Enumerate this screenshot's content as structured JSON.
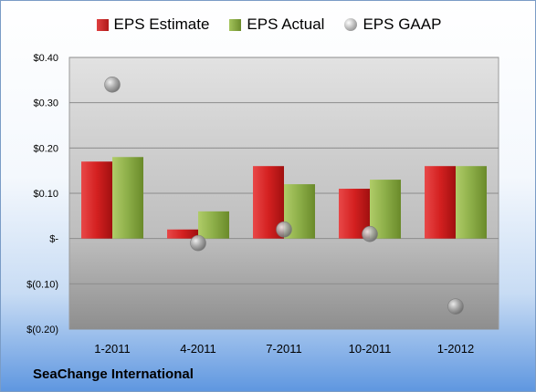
{
  "legend": {
    "estimate": "EPS Estimate",
    "actual": "EPS Actual",
    "gaap": "EPS GAAP"
  },
  "company": "SeaChange International",
  "colors": {
    "estimate": "#c62828",
    "actual": "#8cae48",
    "gaap": "#a0a0a0"
  },
  "chart_data": {
    "type": "bar",
    "categories": [
      "1-2011",
      "4-2011",
      "7-2011",
      "10-2011",
      "1-2012"
    ],
    "series": [
      {
        "name": "EPS Estimate",
        "values": [
          0.17,
          0.02,
          0.16,
          0.11,
          0.16
        ]
      },
      {
        "name": "EPS Actual",
        "values": [
          0.18,
          0.06,
          0.12,
          0.13,
          0.16
        ]
      },
      {
        "name": "EPS GAAP",
        "values": [
          0.34,
          -0.01,
          0.02,
          0.01,
          -0.15
        ],
        "marker": "circle"
      }
    ],
    "y_ticks": [
      {
        "value": 0.4,
        "label": "$0.40"
      },
      {
        "value": 0.3,
        "label": "$0.30"
      },
      {
        "value": 0.2,
        "label": "$0.20"
      },
      {
        "value": 0.1,
        "label": "$0.10"
      },
      {
        "value": 0.0,
        "label": "$-"
      },
      {
        "value": -0.1,
        "label": "$(0.10)"
      },
      {
        "value": -0.2,
        "label": "$(0.20)"
      }
    ],
    "ylim": [
      -0.2,
      0.4
    ],
    "grid": true,
    "legend_position": "top"
  }
}
